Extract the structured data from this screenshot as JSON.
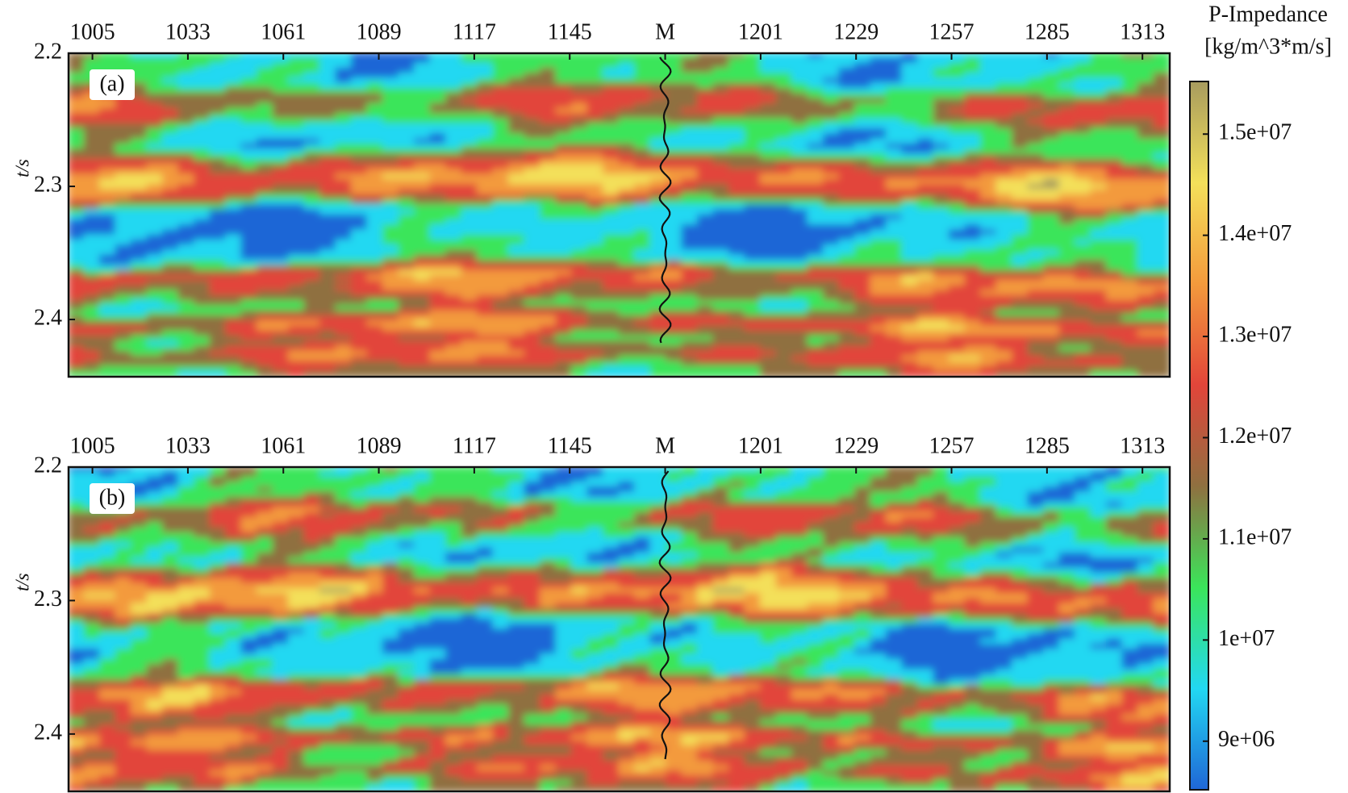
{
  "chart_data": [
    {
      "type": "heatmap",
      "panel_label": "(a)",
      "ylabel": "t/s",
      "xlim": [
        998,
        1321
      ],
      "xticks": [
        1005,
        1033,
        1061,
        1089,
        1117,
        1145,
        {
          "value": 1173,
          "label": "M"
        },
        1201,
        1229,
        1257,
        1285,
        1313
      ],
      "ylim": [
        2.2,
        2.443
      ],
      "yticks": [
        2.2,
        2.3,
        2.4
      ]
    },
    {
      "type": "heatmap",
      "panel_label": "(b)",
      "ylabel": "t/s",
      "xlim": [
        998,
        1321
      ],
      "xticks": [
        1005,
        1033,
        1061,
        1089,
        1117,
        1145,
        {
          "value": 1173,
          "label": "M"
        },
        1201,
        1229,
        1257,
        1285,
        1313
      ],
      "ylim": [
        2.2,
        2.443
      ],
      "yticks": [
        2.2,
        2.3,
        2.4
      ]
    }
  ],
  "colorbar": {
    "title": [
      "P-Impedance",
      "[kg/m^3*m/s]"
    ],
    "clim": [
      8520000,
      15520000
    ],
    "ticks": [
      {
        "value": 9000000,
        "label": "9e+06"
      },
      {
        "value": 10000000,
        "label": "1e+07"
      },
      {
        "value": 11000000,
        "label": "1.1e+07"
      },
      {
        "value": 12000000,
        "label": "1.2e+07"
      },
      {
        "value": 13000000,
        "label": "1.3e+07"
      },
      {
        "value": 14000000,
        "label": "1.4e+07"
      },
      {
        "value": 15000000,
        "label": "1.5e+07"
      }
    ],
    "colormap": [
      "#1f66d6",
      "#22d8f2",
      "#3be55a",
      "#8f7040",
      "#e2453a",
      "#f39a3c",
      "#f3e05a",
      "#a89c5e"
    ]
  }
}
